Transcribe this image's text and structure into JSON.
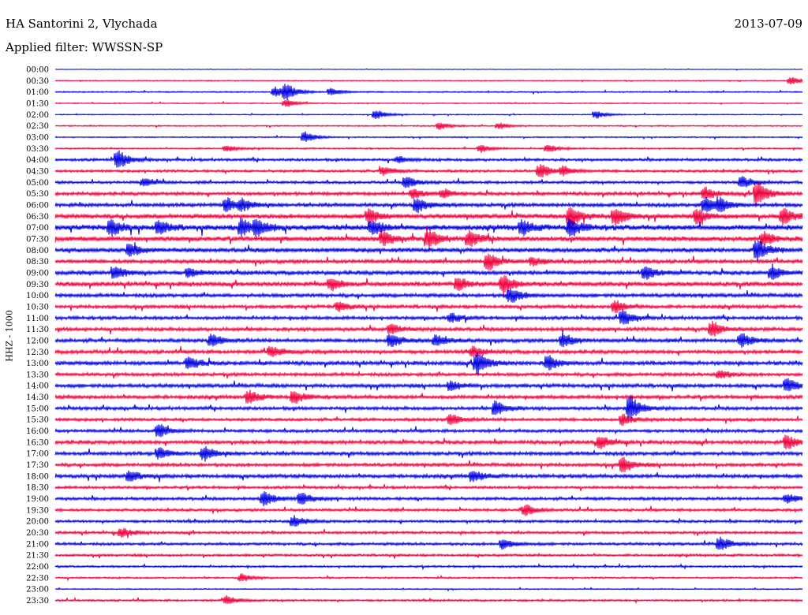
{
  "header": {
    "station": "HA Santorini 2, Vlychada",
    "date": "2013-07-09",
    "filter": "Applied filter: WWSSN-SP"
  },
  "chart_data": {
    "type": "line",
    "title": "HA Santorini 2, Vlychada",
    "ylabel": "HHZ - 1000",
    "rows": [
      "00:00",
      "00:30",
      "01:00",
      "01:30",
      "02:00",
      "02:30",
      "03:00",
      "03:30",
      "04:00",
      "04:30",
      "05:00",
      "05:30",
      "06:00",
      "06:30",
      "07:00",
      "07:30",
      "08:00",
      "08:30",
      "09:00",
      "09:30",
      "10:00",
      "10:30",
      "11:00",
      "11:30",
      "12:00",
      "12:30",
      "13:00",
      "13:30",
      "14:00",
      "14:30",
      "15:00",
      "15:30",
      "16:00",
      "16:30",
      "17:00",
      "17:30",
      "18:00",
      "18:30",
      "19:00",
      "19:30",
      "20:00",
      "20:30",
      "21:00",
      "21:30",
      "22:00",
      "22:30",
      "23:00",
      "23:30"
    ],
    "colors": [
      "#0000e0",
      "#f0003c"
    ],
    "amplitude": [
      0.3,
      0.6,
      0.8,
      0.6,
      0.6,
      0.8,
      0.7,
      0.9,
      1.6,
      1.5,
      1.6,
      2.0,
      2.2,
      2.6,
      3.2,
      2.8,
      2.6,
      2.2,
      2.4,
      2.6,
      2.2,
      2.0,
      2.0,
      2.2,
      2.2,
      2.2,
      2.4,
      2.0,
      2.2,
      2.2,
      2.0,
      1.8,
      1.8,
      2.2,
      2.2,
      2.0,
      2.2,
      1.6,
      1.8,
      1.6,
      1.6,
      1.6,
      1.6,
      1.4,
      1.2,
      1.0,
      0.7,
      1.2
    ],
    "events": [
      {
        "row": 1,
        "x": 0.985,
        "a": 5
      },
      {
        "row": 2,
        "x": 0.295,
        "a": 7
      },
      {
        "row": 2,
        "x": 0.31,
        "a": 10
      },
      {
        "row": 2,
        "x": 0.37,
        "a": 5
      },
      {
        "row": 3,
        "x": 0.31,
        "a": 5
      },
      {
        "row": 4,
        "x": 0.43,
        "a": 6
      },
      {
        "row": 4,
        "x": 0.725,
        "a": 5
      },
      {
        "row": 5,
        "x": 0.515,
        "a": 5
      },
      {
        "row": 5,
        "x": 0.595,
        "a": 4
      },
      {
        "row": 6,
        "x": 0.335,
        "a": 7
      },
      {
        "row": 7,
        "x": 0.23,
        "a": 4
      },
      {
        "row": 7,
        "x": 0.57,
        "a": 5
      },
      {
        "row": 7,
        "x": 0.66,
        "a": 5
      },
      {
        "row": 8,
        "x": 0.085,
        "a": 12
      },
      {
        "row": 8,
        "x": 0.46,
        "a": 4
      },
      {
        "row": 9,
        "x": 0.44,
        "a": 6
      },
      {
        "row": 9,
        "x": 0.65,
        "a": 9
      },
      {
        "row": 9,
        "x": 0.68,
        "a": 6
      },
      {
        "row": 10,
        "x": 0.12,
        "a": 5
      },
      {
        "row": 10,
        "x": 0.47,
        "a": 8
      },
      {
        "row": 10,
        "x": 0.92,
        "a": 7
      },
      {
        "row": 11,
        "x": 0.48,
        "a": 6
      },
      {
        "row": 11,
        "x": 0.52,
        "a": 5
      },
      {
        "row": 11,
        "x": 0.87,
        "a": 8
      },
      {
        "row": 11,
        "x": 0.94,
        "a": 16
      },
      {
        "row": 12,
        "x": 0.23,
        "a": 9
      },
      {
        "row": 12,
        "x": 0.25,
        "a": 7
      },
      {
        "row": 12,
        "x": 0.485,
        "a": 9
      },
      {
        "row": 12,
        "x": 0.87,
        "a": 10
      },
      {
        "row": 12,
        "x": 0.89,
        "a": 8
      },
      {
        "row": 13,
        "x": 0.42,
        "a": 9
      },
      {
        "row": 13,
        "x": 0.69,
        "a": 14
      },
      {
        "row": 13,
        "x": 0.75,
        "a": 12
      },
      {
        "row": 13,
        "x": 0.86,
        "a": 9
      },
      {
        "row": 13,
        "x": 0.975,
        "a": 10
      },
      {
        "row": 14,
        "x": 0.075,
        "a": 10
      },
      {
        "row": 14,
        "x": 0.14,
        "a": 8
      },
      {
        "row": 14,
        "x": 0.25,
        "a": 11
      },
      {
        "row": 14,
        "x": 0.27,
        "a": 9
      },
      {
        "row": 14,
        "x": 0.425,
        "a": 10
      },
      {
        "row": 14,
        "x": 0.625,
        "a": 9
      },
      {
        "row": 14,
        "x": 0.69,
        "a": 11
      },
      {
        "row": 15,
        "x": 0.44,
        "a": 9
      },
      {
        "row": 15,
        "x": 0.5,
        "a": 12
      },
      {
        "row": 15,
        "x": 0.555,
        "a": 10
      },
      {
        "row": 15,
        "x": 0.95,
        "a": 8
      },
      {
        "row": 16,
        "x": 0.1,
        "a": 8
      },
      {
        "row": 16,
        "x": 0.94,
        "a": 14
      },
      {
        "row": 17,
        "x": 0.58,
        "a": 12
      },
      {
        "row": 17,
        "x": 0.64,
        "a": 5
      },
      {
        "row": 18,
        "x": 0.08,
        "a": 9
      },
      {
        "row": 18,
        "x": 0.18,
        "a": 6
      },
      {
        "row": 18,
        "x": 0.79,
        "a": 9
      },
      {
        "row": 18,
        "x": 0.96,
        "a": 8
      },
      {
        "row": 19,
        "x": 0.37,
        "a": 8
      },
      {
        "row": 19,
        "x": 0.54,
        "a": 8
      },
      {
        "row": 19,
        "x": 0.6,
        "a": 12
      },
      {
        "row": 20,
        "x": 0.61,
        "a": 10
      },
      {
        "row": 21,
        "x": 0.38,
        "a": 6
      },
      {
        "row": 21,
        "x": 0.75,
        "a": 8
      },
      {
        "row": 22,
        "x": 0.53,
        "a": 6
      },
      {
        "row": 22,
        "x": 0.76,
        "a": 10
      },
      {
        "row": 23,
        "x": 0.45,
        "a": 6
      },
      {
        "row": 23,
        "x": 0.88,
        "a": 10
      },
      {
        "row": 24,
        "x": 0.21,
        "a": 9
      },
      {
        "row": 24,
        "x": 0.45,
        "a": 9
      },
      {
        "row": 24,
        "x": 0.51,
        "a": 7
      },
      {
        "row": 24,
        "x": 0.68,
        "a": 9
      },
      {
        "row": 24,
        "x": 0.92,
        "a": 9
      },
      {
        "row": 25,
        "x": 0.29,
        "a": 7
      },
      {
        "row": 25,
        "x": 0.56,
        "a": 6
      },
      {
        "row": 26,
        "x": 0.18,
        "a": 8
      },
      {
        "row": 26,
        "x": 0.565,
        "a": 15
      },
      {
        "row": 26,
        "x": 0.66,
        "a": 9
      },
      {
        "row": 27,
        "x": 0.89,
        "a": 6
      },
      {
        "row": 28,
        "x": 0.53,
        "a": 6
      },
      {
        "row": 28,
        "x": 0.98,
        "a": 9
      },
      {
        "row": 29,
        "x": 0.26,
        "a": 8
      },
      {
        "row": 29,
        "x": 0.32,
        "a": 8
      },
      {
        "row": 30,
        "x": 0.59,
        "a": 10
      },
      {
        "row": 30,
        "x": 0.77,
        "a": 16
      },
      {
        "row": 31,
        "x": 0.53,
        "a": 8
      },
      {
        "row": 31,
        "x": 0.76,
        "a": 7
      },
      {
        "row": 32,
        "x": 0.14,
        "a": 8
      },
      {
        "row": 33,
        "x": 0.73,
        "a": 8
      },
      {
        "row": 33,
        "x": 0.98,
        "a": 9
      },
      {
        "row": 34,
        "x": 0.14,
        "a": 7
      },
      {
        "row": 34,
        "x": 0.2,
        "a": 9
      },
      {
        "row": 35,
        "x": 0.76,
        "a": 10
      },
      {
        "row": 36,
        "x": 0.1,
        "a": 7
      },
      {
        "row": 36,
        "x": 0.56,
        "a": 7
      },
      {
        "row": 38,
        "x": 0.28,
        "a": 10
      },
      {
        "row": 38,
        "x": 0.33,
        "a": 8
      },
      {
        "row": 38,
        "x": 0.98,
        "a": 6
      },
      {
        "row": 39,
        "x": 0.63,
        "a": 7
      },
      {
        "row": 40,
        "x": 0.32,
        "a": 7
      },
      {
        "row": 41,
        "x": 0.09,
        "a": 6
      },
      {
        "row": 42,
        "x": 0.6,
        "a": 7
      },
      {
        "row": 42,
        "x": 0.89,
        "a": 9
      },
      {
        "row": 45,
        "x": 0.25,
        "a": 5
      },
      {
        "row": 47,
        "x": 0.23,
        "a": 6
      }
    ]
  }
}
